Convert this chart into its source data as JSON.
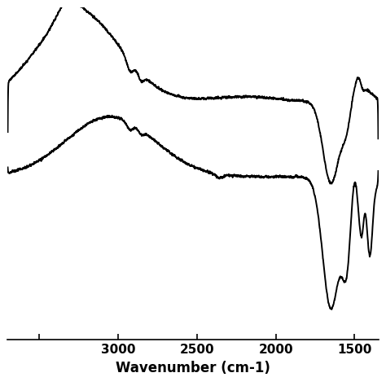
{
  "xlabel": "Wavenumber (cm-1)",
  "background_color": "#ffffff",
  "line_color": "#000000",
  "linewidth": 1.4,
  "xlim_left": 3700,
  "xlim_right": 1350,
  "x_ticks": [
    3500,
    3000,
    2500,
    2000,
    1500
  ],
  "x_tick_labels": [
    "",
    "3000",
    "2500",
    "2000",
    "1500"
  ],
  "tick_fontsize": 11,
  "xlabel_fontsize": 12
}
